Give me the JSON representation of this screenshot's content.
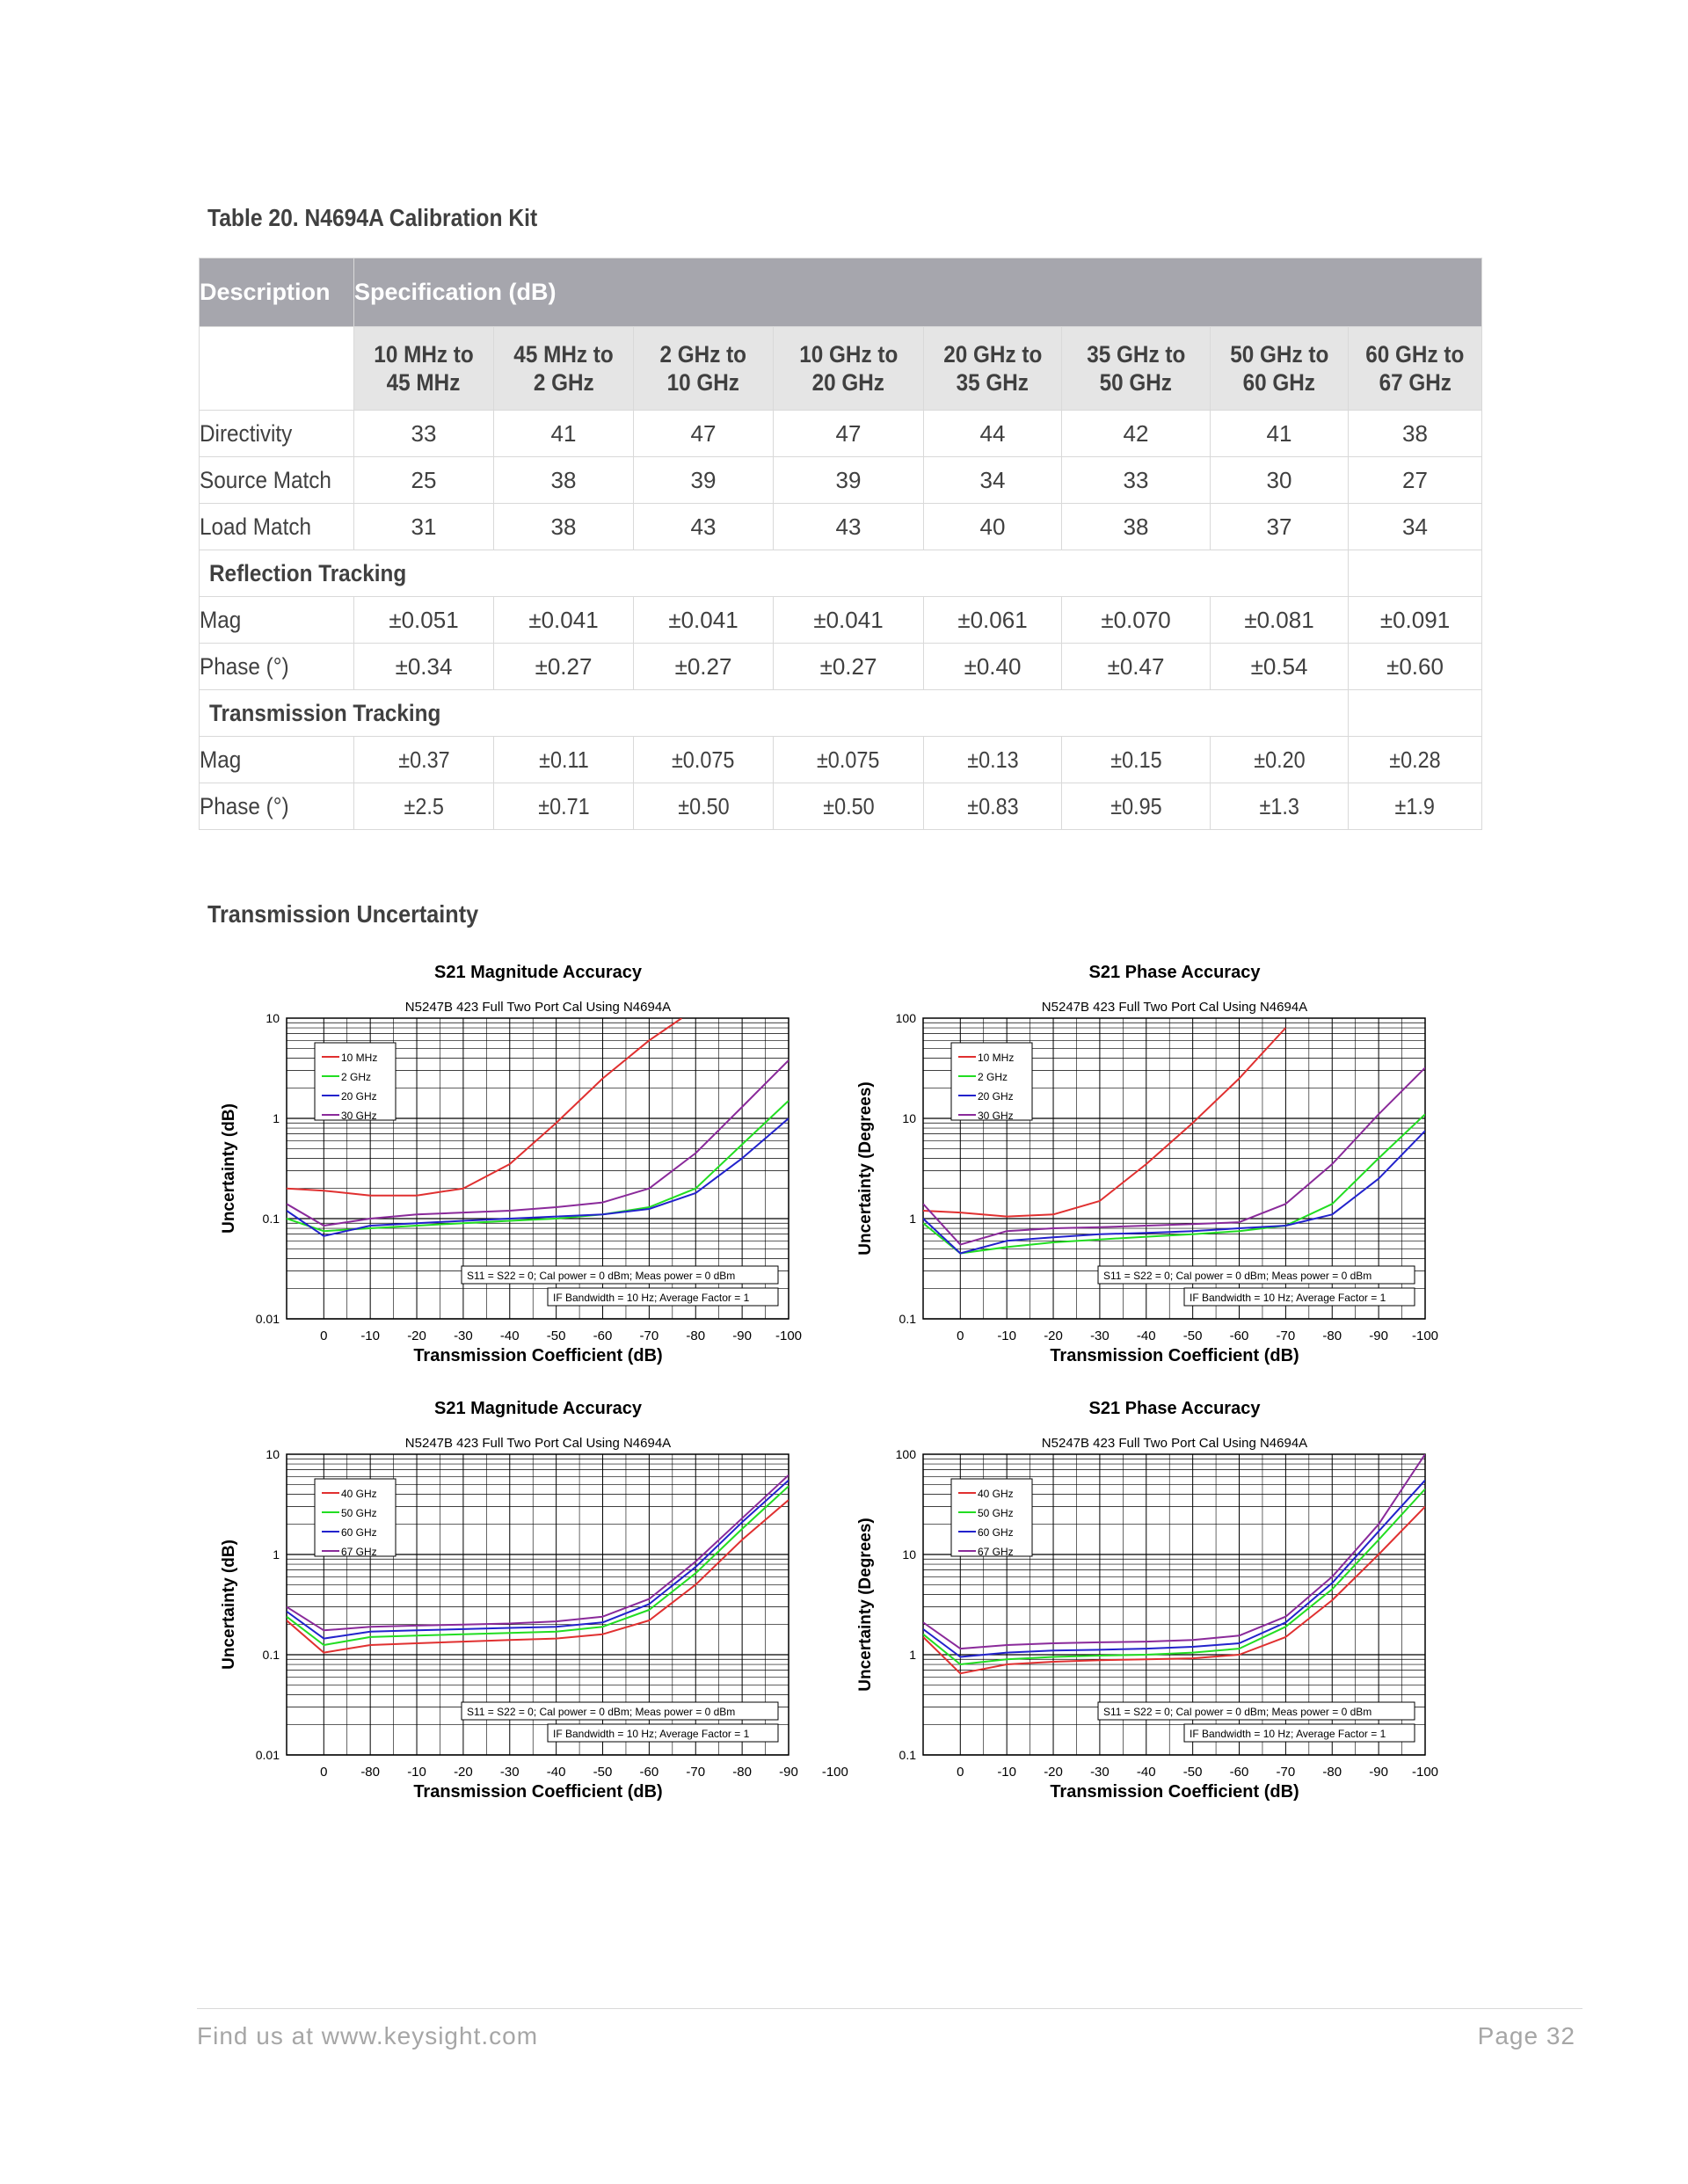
{
  "table": {
    "title": "Table 20. N4694A Calibration Kit",
    "header_description": "Description",
    "header_specification": "Specification (dB)",
    "bands": [
      "10 MHz to|45 MHz",
      "45 MHz to|2 GHz",
      "2 GHz to|10 GHz",
      "10 GHz to|20 GHz",
      "20 GHz to|35 GHz",
      "35 GHz to|50 GHz",
      "50 GHz to|60 GHz",
      "60 GHz to|67 GHz"
    ],
    "rows": [
      {
        "type": "row",
        "label": "Directivity",
        "values": [
          "33",
          "41",
          "47",
          "47",
          "44",
          "42",
          "41",
          "38"
        ]
      },
      {
        "type": "row",
        "label": "Source Match",
        "values": [
          "25",
          "38",
          "39",
          "39",
          "34",
          "33",
          "30",
          "27"
        ]
      },
      {
        "type": "row",
        "label": "Load Match",
        "values": [
          "31",
          "38",
          "43",
          "43",
          "40",
          "38",
          "37",
          "34"
        ]
      },
      {
        "type": "section",
        "label": "Reflection Tracking"
      },
      {
        "type": "row",
        "label": "Mag",
        "values": [
          "±0.051",
          "±0.041",
          "±0.041",
          "±0.041",
          "±0.061",
          "±0.070",
          "±0.081",
          "±0.091"
        ]
      },
      {
        "type": "row",
        "label": "Phase (°)",
        "values": [
          "±0.34",
          "±0.27",
          "±0.27",
          "±0.27",
          "±0.40",
          "±0.47",
          "±0.54",
          "±0.60"
        ]
      },
      {
        "type": "section",
        "label": "Transmission Tracking"
      },
      {
        "type": "row",
        "label": "Mag",
        "values": [
          "±0.37",
          "±0.11",
          "±0.075",
          "±0.075",
          "±0.13",
          "±0.15",
          "±0.20",
          "±0.28"
        ],
        "narrow": true
      },
      {
        "type": "row",
        "label": "Phase (°)",
        "values": [
          "±2.5",
          "±0.71",
          "±0.50",
          "±0.50",
          "±0.83",
          "±0.95",
          "±1.3",
          "±1.9"
        ],
        "narrow": true
      }
    ]
  },
  "section_title": "Transmission Uncertainty",
  "chart_data": [
    {
      "type": "line",
      "title": "S21 Magnitude Accuracy",
      "subtitle": "N5247B 423 Full Two Port Cal Using N4694A",
      "xlabel": "Transmission Coefficient (dB)",
      "ylabel": "Uncertainty (dB)",
      "x_ticks": [
        "0",
        "-10",
        "-20",
        "-30",
        "-40",
        "-50",
        "-60",
        "-70",
        "-80",
        "-90",
        "-100"
      ],
      "y_ticks": [
        "10",
        "1",
        "0.1",
        "0.01"
      ],
      "xlim": [
        8,
        -100
      ],
      "ylim": [
        0.01,
        10
      ],
      "y_scale": "log",
      "grid": true,
      "legend": "top-left",
      "notes": [
        "S11 = S22 = 0; Cal power = 0 dBm; Meas power = 0 dBm",
        "IF Bandwidth = 10 Hz; Average Factor = 1"
      ],
      "series": [
        {
          "name": "10 MHz",
          "color": "#e03030",
          "x": [
            8,
            0,
            -10,
            -20,
            -30,
            -40,
            -50,
            -60,
            -70,
            -77
          ],
          "y": [
            0.2,
            0.19,
            0.17,
            0.17,
            0.2,
            0.35,
            0.9,
            2.5,
            6,
            10
          ]
        },
        {
          "name": "2 GHz",
          "color": "#22dd22",
          "x": [
            8,
            0,
            -10,
            -20,
            -30,
            -40,
            -50,
            -60,
            -70,
            -80,
            -90,
            -100
          ],
          "y": [
            0.1,
            0.075,
            0.08,
            0.085,
            0.09,
            0.095,
            0.1,
            0.11,
            0.13,
            0.2,
            0.55,
            1.5
          ]
        },
        {
          "name": "20 GHz",
          "color": "#2222cc",
          "x": [
            8,
            0,
            -10,
            -20,
            -30,
            -40,
            -50,
            -60,
            -70,
            -80,
            -90,
            -100
          ],
          "y": [
            0.12,
            0.067,
            0.085,
            0.09,
            0.095,
            0.1,
            0.105,
            0.11,
            0.125,
            0.18,
            0.4,
            1.0
          ]
        },
        {
          "name": "30 GHz",
          "color": "#8a2a9a",
          "x": [
            8,
            0,
            -10,
            -20,
            -30,
            -40,
            -50,
            -60,
            -70,
            -80,
            -90,
            -100
          ],
          "y": [
            0.14,
            0.085,
            0.1,
            0.11,
            0.115,
            0.12,
            0.13,
            0.145,
            0.2,
            0.45,
            1.3,
            3.8
          ]
        }
      ]
    },
    {
      "type": "line",
      "title": "S21 Phase Accuracy",
      "subtitle": "N5247B 423 Full Two Port Cal Using N4694A",
      "xlabel": "Transmission Coefficient (dB)",
      "ylabel": "Uncertainty (Degrees)",
      "x_ticks": [
        "0",
        "-10",
        "-20",
        "-30",
        "-40",
        "-50",
        "-60",
        "-70",
        "-80",
        "-90",
        "-100"
      ],
      "y_ticks": [
        "100",
        "10",
        "1",
        "0.1"
      ],
      "xlim": [
        8,
        -100
      ],
      "ylim": [
        0.1,
        100
      ],
      "y_scale": "log",
      "grid": true,
      "legend": "top-left",
      "notes": [
        "S11 = S22 = 0; Cal power = 0 dBm; Meas power = 0 dBm",
        "IF Bandwidth = 10 Hz; Average Factor = 1"
      ],
      "series": [
        {
          "name": "10 MHz",
          "color": "#e03030",
          "x": [
            8,
            0,
            -10,
            -20,
            -30,
            -40,
            -50,
            -60,
            -70
          ],
          "y": [
            1.2,
            1.15,
            1.05,
            1.1,
            1.5,
            3.5,
            9,
            25,
            80
          ]
        },
        {
          "name": "2 GHz",
          "color": "#22dd22",
          "x": [
            8,
            0,
            -10,
            -20,
            -30,
            -40,
            -50,
            -60,
            -70,
            -80,
            -90,
            -100
          ],
          "y": [
            0.9,
            0.45,
            0.52,
            0.58,
            0.62,
            0.66,
            0.7,
            0.75,
            0.85,
            1.4,
            4,
            11
          ]
        },
        {
          "name": "20 GHz",
          "color": "#2222cc",
          "x": [
            8,
            0,
            -10,
            -20,
            -30,
            -40,
            -50,
            -60,
            -70,
            -80,
            -90,
            -100
          ],
          "y": [
            1.0,
            0.45,
            0.6,
            0.65,
            0.7,
            0.72,
            0.75,
            0.8,
            0.85,
            1.1,
            2.5,
            7.5
          ]
        },
        {
          "name": "30 GHz",
          "color": "#8a2a9a",
          "x": [
            8,
            0,
            -10,
            -20,
            -30,
            -40,
            -50,
            -60,
            -70,
            -80,
            -90,
            -100
          ],
          "y": [
            1.4,
            0.55,
            0.75,
            0.8,
            0.82,
            0.85,
            0.88,
            0.92,
            1.4,
            3.5,
            11,
            32
          ]
        }
      ]
    },
    {
      "type": "line",
      "title": "S21 Magnitude Accuracy",
      "subtitle": "N5247B 423 Full Two Port Cal Using N4694A",
      "xlabel": "Transmission Coefficient (dB)",
      "ylabel": "Uncertainty (dB)",
      "x_ticks": [
        "0",
        "-80",
        "-10",
        "-20",
        "-30",
        "-40",
        "-50",
        "-60",
        "-70",
        "-80",
        "-90",
        "-100"
      ],
      "x_values": [
        0,
        -80,
        -10,
        -20,
        -30,
        -40,
        -50,
        -60,
        -70,
        -80,
        -90,
        -100
      ],
      "y_ticks": [
        "10",
        "1",
        "0.1",
        "0.01"
      ],
      "xlim": [
        8,
        -100
      ],
      "ylim": [
        0.01,
        10
      ],
      "y_scale": "log",
      "grid": true,
      "legend": "top-left",
      "notes": [
        "S11 = S22 = 0; Cal power = 0 dBm; Meas power = 0 dBm",
        "IF Bandwidth = 10 Hz; Average Factor = 1"
      ],
      "series": [
        {
          "name": "40 GHz",
          "color": "#e03030",
          "x": [
            8,
            0,
            -10,
            -20,
            -30,
            -40,
            -50,
            -60,
            -70,
            -80,
            -90,
            -100
          ],
          "y": [
            0.22,
            0.105,
            0.125,
            0.13,
            0.135,
            0.14,
            0.145,
            0.16,
            0.22,
            0.5,
            1.4,
            3.5
          ]
        },
        {
          "name": "50 GHz",
          "color": "#22dd22",
          "x": [
            8,
            0,
            -10,
            -20,
            -30,
            -40,
            -50,
            -60,
            -70,
            -80,
            -90,
            -100
          ],
          "y": [
            0.24,
            0.125,
            0.15,
            0.155,
            0.16,
            0.165,
            0.17,
            0.19,
            0.28,
            0.65,
            1.8,
            4.8
          ]
        },
        {
          "name": "60 GHz",
          "color": "#2222cc",
          "x": [
            8,
            0,
            -10,
            -20,
            -30,
            -40,
            -50,
            -60,
            -70,
            -80,
            -90,
            -100
          ],
          "y": [
            0.27,
            0.145,
            0.17,
            0.175,
            0.18,
            0.185,
            0.19,
            0.21,
            0.32,
            0.75,
            2.1,
            5.5
          ]
        },
        {
          "name": "67 GHz",
          "color": "#8a2a9a",
          "x": [
            8,
            0,
            -10,
            -20,
            -30,
            -40,
            -50,
            -60,
            -70,
            -80,
            -90,
            -100
          ],
          "y": [
            0.3,
            0.175,
            0.19,
            0.195,
            0.2,
            0.205,
            0.215,
            0.24,
            0.36,
            0.85,
            2.3,
            6.2
          ]
        }
      ]
    },
    {
      "type": "line",
      "title": "S21 Phase Accuracy",
      "subtitle": "N5247B 423 Full Two Port Cal Using N4694A",
      "xlabel": "Transmission Coefficient (dB)",
      "ylabel": "Uncertainty (Degrees)",
      "x_ticks": [
        "0",
        "-10",
        "-20",
        "-30",
        "-40",
        "-50",
        "-60",
        "-70",
        "-80",
        "-90",
        "-100"
      ],
      "y_ticks": [
        "100",
        "10",
        "1",
        "0.1"
      ],
      "xlim": [
        8,
        -100
      ],
      "ylim": [
        0.1,
        100
      ],
      "y_scale": "log",
      "grid": true,
      "legend": "top-left",
      "notes": [
        "S11 = S22 = 0; Cal power = 0 dBm; Meas power = 0 dBm",
        "IF Bandwidth = 10 Hz; Average Factor = 1"
      ],
      "series": [
        {
          "name": "40 GHz",
          "color": "#e03030",
          "x": [
            8,
            0,
            -10,
            -20,
            -30,
            -40,
            -50,
            -60,
            -70,
            -80,
            -90,
            -100
          ],
          "y": [
            1.5,
            0.65,
            0.8,
            0.85,
            0.88,
            0.9,
            0.92,
            1.0,
            1.5,
            3.5,
            10,
            30
          ]
        },
        {
          "name": "50 GHz",
          "color": "#22dd22",
          "x": [
            8,
            0,
            -10,
            -20,
            -30,
            -40,
            -50,
            -60,
            -70,
            -80,
            -90,
            -100
          ],
          "y": [
            1.6,
            0.8,
            0.9,
            0.95,
            0.98,
            1.0,
            1.05,
            1.15,
            1.9,
            4.5,
            14,
            45
          ]
        },
        {
          "name": "60 GHz",
          "color": "#2222cc",
          "x": [
            8,
            0,
            -10,
            -20,
            -30,
            -40,
            -50,
            -60,
            -70,
            -80,
            -90,
            -100
          ],
          "y": [
            1.8,
            0.95,
            1.05,
            1.1,
            1.12,
            1.15,
            1.2,
            1.3,
            2.1,
            5.2,
            17,
            55
          ]
        },
        {
          "name": "67 GHz",
          "color": "#8a2a9a",
          "x": [
            8,
            0,
            -10,
            -20,
            -30,
            -40,
            -50,
            -60,
            -70,
            -80,
            -90,
            -100
          ],
          "y": [
            2.1,
            1.15,
            1.25,
            1.3,
            1.33,
            1.35,
            1.4,
            1.55,
            2.4,
            6,
            20,
            100
          ]
        }
      ]
    }
  ],
  "footer": {
    "left": "Find us at www.keysight.com",
    "right": "Page 32"
  }
}
